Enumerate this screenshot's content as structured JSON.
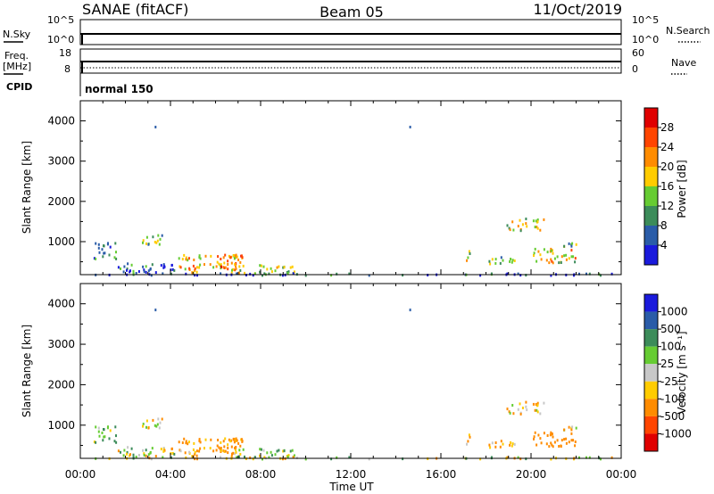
{
  "header": {
    "title": "SANAE (fitACF)",
    "beam": "Beam 05",
    "date": "11/Oct/2019"
  },
  "top_panels": {
    "nsky_label": "N.Sky",
    "nsky_ticks": [
      "10^5",
      "10^0"
    ],
    "nsearch_label": "N.Search",
    "nsearch_ticks": [
      "10^5",
      "10^0"
    ],
    "freq_label_1": "Freq.",
    "freq_label_2": "[MHz]",
    "freq_ticks": [
      "18",
      "8"
    ],
    "nave_label": "Nave",
    "nave_ticks": [
      "60",
      "0"
    ],
    "cpid_label": "CPID",
    "cpid_value": "normal 150"
  },
  "power_scale": {
    "label": "Power [dB]",
    "tick_labels": [
      "4",
      "8",
      "12",
      "16",
      "20",
      "24",
      "28"
    ],
    "colors": [
      "#1a1adc",
      "#2a5ca8",
      "#3c8c5a",
      "#66cc33",
      "#ffcc00",
      "#ff8c00",
      "#ff4500",
      "#e00000"
    ]
  },
  "velocity_scale": {
    "label": "Velocity [m s⁻¹]",
    "tick_labels": [
      "1000",
      "500",
      "100",
      "25",
      "-25",
      "-100",
      "-500",
      "-1000"
    ],
    "colors": [
      "#1a1adc",
      "#2a5ca8",
      "#3c8c5a",
      "#66cc33",
      "#c8c8c8",
      "#ffcc00",
      "#ff8c00",
      "#ff4500",
      "#e00000"
    ]
  },
  "chart_data": {
    "type": "heatmap",
    "xlabel": "Time UT",
    "ylabel": "Slant Range [km]",
    "x_tick_labels": [
      "00:00",
      "04:00",
      "08:00",
      "12:00",
      "16:00",
      "20:00",
      "00:00"
    ],
    "xlim_hours": [
      0,
      24
    ],
    "ylim_km": [
      180,
      4500
    ],
    "y_tick_values": [
      1000,
      2000,
      3000,
      4000
    ],
    "y_tick_labels": [
      "1000",
      "2000",
      "3000",
      "4000"
    ],
    "power_range_db": [
      0,
      32
    ],
    "velocity_range_ms": [
      -1500,
      1500
    ],
    "scatter_regions": [
      {
        "t0": 0.5,
        "t1": 1.6,
        "r0": 600,
        "r1": 1000,
        "power_db": 8,
        "velocity_ms": 100
      },
      {
        "t0": 1.6,
        "t1": 4.2,
        "r0": 200,
        "r1": 500,
        "power_db": 6,
        "velocity_ms": 20
      },
      {
        "t0": 2.6,
        "t1": 3.6,
        "r0": 900,
        "r1": 1200,
        "power_db": 12,
        "velocity_ms": -60
      },
      {
        "t0": 4.3,
        "t1": 7.0,
        "r0": 250,
        "r1": 700,
        "power_db": 20,
        "velocity_ms": -150
      },
      {
        "t0": 6.0,
        "t1": 7.2,
        "r0": 350,
        "r1": 700,
        "power_db": 22,
        "velocity_ms": -200
      },
      {
        "t0": 7.0,
        "t1": 9.6,
        "r0": 200,
        "r1": 450,
        "power_db": 14,
        "velocity_ms": 20
      },
      {
        "t0": 17.1,
        "t1": 17.4,
        "r0": 500,
        "r1": 800,
        "power_db": 16,
        "velocity_ms": -120
      },
      {
        "t0": 18.0,
        "t1": 19.4,
        "r0": 450,
        "r1": 650,
        "power_db": 14,
        "velocity_ms": -100
      },
      {
        "t0": 19.8,
        "t1": 22.0,
        "r0": 500,
        "r1": 850,
        "power_db": 18,
        "velocity_ms": -300
      },
      {
        "t0": 18.9,
        "t1": 20.6,
        "r0": 1300,
        "r1": 1600,
        "power_db": 18,
        "velocity_ms": -60
      },
      {
        "t0": 21.0,
        "t1": 22.5,
        "r0": 900,
        "r1": 1000,
        "power_db": 12,
        "velocity_ms": -50
      },
      {
        "t0": 0.3,
        "t1": 23.8,
        "r0": 190,
        "r1": 240,
        "power_db": 6,
        "velocity_ms": 10
      }
    ],
    "isolated_points": [
      {
        "t": 3.3,
        "r": 3880
      },
      {
        "t": 14.6,
        "r": 3880
      }
    ]
  }
}
